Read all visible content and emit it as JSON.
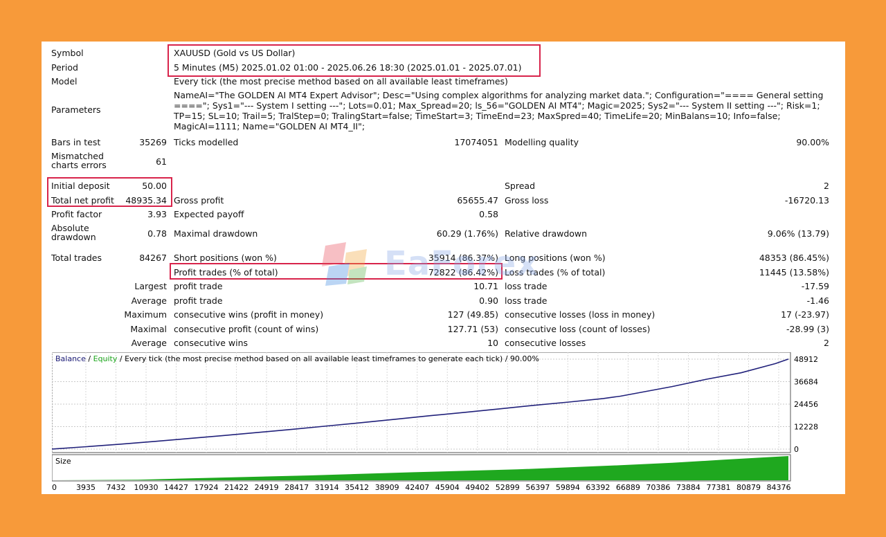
{
  "header": {
    "symbol": {
      "label": "Symbol",
      "value": "XAUUSD (Gold vs US Dollar)"
    },
    "period": {
      "label": "Period",
      "value": "5 Minutes (M5) 2025.01.02 01:00 - 2025.06.26 18:30 (2025.01.01 - 2025.07.01)"
    },
    "model": {
      "label": "Model",
      "value": "Every tick (the most precise method based on all available least timeframes)"
    },
    "parameters": {
      "label": "Parameters",
      "value": "NameAI=\"The GOLDEN AI MT4 Expert Advisor\"; Desc=\"Using complex algorithms for analyzing market data.\"; Configuration=\"==== General setting ====\"; Sys1=\"--- System I setting ---\"; Lots=0.01; Max_Spread=20; ls_56=\"GOLDEN AI MT4\"; Magic=2025; Sys2=\"--- System II setting ---\"; Risk=1; TP=15; SL=10; Trail=5; TralStep=0; TralingStart=false; TimeStart=3; TimeEnd=23; MaxSpred=40; TimeLife=20; MinBalans=10; Info=false; MagicAI=1111; Name=\"GOLDEN AI MT4_II\";"
    }
  },
  "stats": {
    "bars": {
      "label": "Bars in test",
      "value": "35269"
    },
    "ticks": {
      "label": "Ticks modelled",
      "value": "17074051"
    },
    "quality": {
      "label": "Modelling quality",
      "value": "90.00%"
    },
    "mismatch": {
      "label": "Mismatched charts errors",
      "value": "61"
    },
    "initial_deposit": {
      "label": "Initial deposit",
      "value": "50.00"
    },
    "spread": {
      "label": "Spread",
      "value": "2"
    },
    "net_profit": {
      "label": "Total net profit",
      "value": "48935.34"
    },
    "gross_profit": {
      "label": "Gross profit",
      "value": "65655.47"
    },
    "gross_loss": {
      "label": "Gross loss",
      "value": "-16720.13"
    },
    "profit_factor": {
      "label": "Profit factor",
      "value": "3.93"
    },
    "expected_payoff": {
      "label": "Expected payoff",
      "value": "0.58"
    },
    "abs_drawdown": {
      "label": "Absolute drawdown",
      "value": "0.78"
    },
    "max_drawdown": {
      "label": "Maximal drawdown",
      "value": "60.29 (1.76%)"
    },
    "rel_drawdown": {
      "label": "Relative drawdown",
      "value": "9.06% (13.79)"
    },
    "total_trades": {
      "label": "Total trades",
      "value": "84267"
    },
    "short_pos": {
      "label": "Short positions (won %)",
      "value": "35914 (86.37%)"
    },
    "long_pos": {
      "label": "Long positions (won %)",
      "value": "48353 (86.45%)"
    },
    "profit_trades": {
      "label": "Profit trades (% of total)",
      "value": "72822 (86.42%)"
    },
    "loss_trades": {
      "label": "Loss trades (% of total)",
      "value": "11445 (13.58%)"
    },
    "largest": {
      "label": "Largest",
      "profit_label": "profit trade",
      "profit": "10.71",
      "loss_label": "loss trade",
      "loss": "-17.59"
    },
    "average": {
      "label": "Average",
      "profit_label": "profit trade",
      "profit": "0.90",
      "loss_label": "loss trade",
      "loss": "-1.46"
    },
    "maximum": {
      "label": "Maximum",
      "profit_label": "consecutive wins (profit in money)",
      "profit": "127 (49.85)",
      "loss_label": "consecutive losses (loss in money)",
      "loss": "17 (-23.97)"
    },
    "maximal": {
      "label": "Maximal",
      "profit_label": "consecutive profit (count of wins)",
      "profit": "127.71 (53)",
      "loss_label": "consecutive loss (count of losses)",
      "loss": "-28.99 (3)"
    },
    "average2": {
      "label": "Average",
      "profit_label": "consecutive wins",
      "profit": "10",
      "loss_label": "consecutive losses",
      "loss": "2"
    }
  },
  "watermark": "EaForex",
  "chart_data": {
    "type": "line",
    "legend": {
      "balance": "Balance",
      "sep": "/",
      "equity": "Equity",
      "desc": "/ Every tick (the most precise method based on all available least timeframes to generate each tick) / 90.00%"
    },
    "size_label": "Size",
    "y_ticks": [
      48912,
      36684,
      24456,
      12228,
      0
    ],
    "ylim": [
      0,
      48912
    ],
    "x_ticks": [
      0,
      3935,
      7432,
      10930,
      14427,
      17924,
      21422,
      24919,
      28417,
      31914,
      35412,
      38909,
      42407,
      45904,
      49402,
      52899,
      56397,
      59894,
      63392,
      66889,
      70386,
      73884,
      77381,
      80879,
      84376
    ],
    "xlim": [
      0,
      85500
    ],
    "series": [
      {
        "name": "Balance",
        "color": "#20207a",
        "x": [
          0,
          4000,
          8000,
          12000,
          16000,
          20000,
          24000,
          28000,
          32000,
          36000,
          40000,
          44000,
          48000,
          52000,
          56000,
          60000,
          64000,
          66000,
          68000,
          72000,
          76000,
          80000,
          84000,
          85500
        ],
        "y": [
          50,
          1300,
          2700,
          4200,
          5800,
          7400,
          9100,
          10800,
          12600,
          14400,
          16300,
          18200,
          20000,
          21900,
          23800,
          25600,
          27500,
          28800,
          30500,
          34000,
          38000,
          41500,
          46500,
          48935
        ]
      }
    ],
    "size_series": {
      "color": "#1fa81f",
      "x": [
        0,
        10000,
        16000,
        30000,
        42000,
        54000,
        66000,
        72000,
        78000,
        85500
      ],
      "y": [
        0,
        0.02,
        0.08,
        0.2,
        0.33,
        0.45,
        0.62,
        0.72,
        0.85,
        1.0
      ]
    },
    "colors": {
      "balance": "#20207a",
      "equity": "#1fa81f",
      "highlight": "#d8234a"
    }
  }
}
